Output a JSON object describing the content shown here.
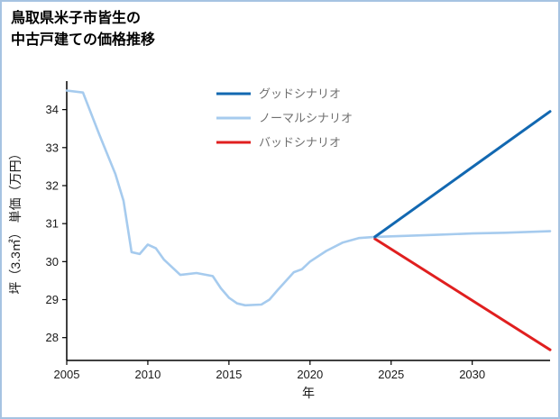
{
  "page": {
    "title_line1": "鳥取県米子市皆生の",
    "title_line2": "中古戸建ての価格推移",
    "border_color": "#a6c3e2"
  },
  "chart_data": {
    "type": "line",
    "title": "鳥取県米子市皆生の中古戸建ての価格推移",
    "xlabel": "年",
    "ylabel": "坪（3.3㎡） 単価（万円）",
    "xlim": [
      2005,
      2034.8
    ],
    "ylim": [
      27.4,
      34.75
    ],
    "xticks": [
      2005,
      2010,
      2015,
      2020,
      2025,
      2030
    ],
    "yticks": [
      28,
      29,
      30,
      31,
      32,
      33,
      34
    ],
    "grid": false,
    "legend_position": "top-center-inside",
    "axis_color": "#000000",
    "tick_label_color": "#1a1a1a",
    "legend_text_color": "#6f6f6f",
    "series": [
      {
        "name": "グッドシナリオ",
        "color": "#1268b1",
        "width": 3,
        "x": [
          2024,
          2034.8
        ],
        "y": [
          30.65,
          33.95
        ]
      },
      {
        "name": "ノーマルシナリオ",
        "color": "#a6cbee",
        "width": 2.6,
        "x": [
          2005,
          2006,
          2006.5,
          2007,
          2008,
          2008.5,
          2009,
          2009.5,
          2010,
          2010.5,
          2011,
          2012,
          2013,
          2014,
          2014.5,
          2015,
          2015.5,
          2016,
          2017,
          2017.5,
          2018,
          2019,
          2019.5,
          2020,
          2021,
          2022,
          2023,
          2024,
          2026,
          2028,
          2030,
          2032,
          2034.8
        ],
        "y": [
          34.5,
          34.45,
          33.9,
          33.35,
          32.3,
          31.6,
          30.25,
          30.2,
          30.45,
          30.35,
          30.05,
          29.65,
          29.7,
          29.62,
          29.3,
          29.05,
          28.9,
          28.85,
          28.87,
          29.0,
          29.25,
          29.72,
          29.8,
          30.0,
          30.28,
          30.5,
          30.62,
          30.65,
          30.68,
          30.71,
          30.74,
          30.76,
          30.8
        ]
      },
      {
        "name": "バッドシナリオ",
        "color": "#e01f1f",
        "width": 3,
        "x": [
          2024,
          2034.8
        ],
        "y": [
          30.6,
          27.68
        ]
      }
    ]
  }
}
